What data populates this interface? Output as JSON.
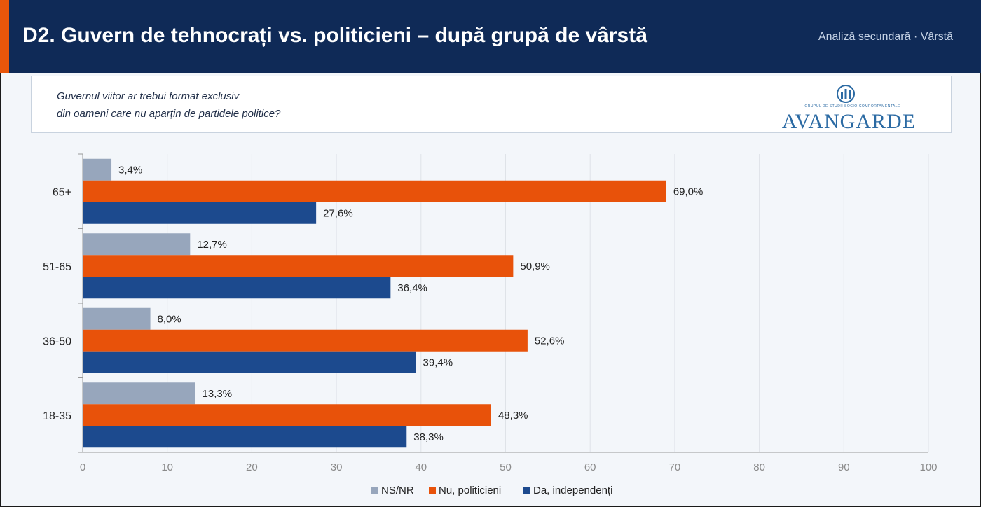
{
  "header": {
    "title": "D2. Guvern de tehnocrați vs. politicieni – după grupă de vârstă",
    "subtitle": "Analiză secundară · Vârstă"
  },
  "question": {
    "line1": "Guvernul viitor ar trebui format exclusiv",
    "line2": "din oameni care nu aparțin de partidele politice?"
  },
  "logo": {
    "brand": "AVANGARDE",
    "tagline": "GRUPUL DE STUDII SOCIO-COMPORTAMENTALE"
  },
  "chart_data": {
    "type": "bar",
    "orientation": "horizontal",
    "categories": [
      "65+",
      "51-65",
      "36-50",
      "18-35"
    ],
    "series": [
      {
        "name": "NS/NR",
        "color": "#97a6bc",
        "values": [
          3.4,
          12.7,
          8.0,
          13.3
        ],
        "labels": [
          "3,4%",
          "12,7%",
          "8,0%",
          "13,3%"
        ]
      },
      {
        "name": "Nu, politicieni",
        "color": "#e8520a",
        "values": [
          69.0,
          50.9,
          52.6,
          48.3
        ],
        "labels": [
          "69,0%",
          "50,9%",
          "52,6%",
          "48,3%"
        ]
      },
      {
        "name": "Da, independenți",
        "color": "#1c4a8e",
        "values": [
          27.6,
          36.4,
          39.4,
          38.3
        ],
        "labels": [
          "27,6%",
          "36,4%",
          "39,4%",
          "38,3%"
        ]
      }
    ],
    "xlim": [
      0,
      100
    ],
    "xticks": [
      0,
      10,
      20,
      30,
      40,
      50,
      60,
      70,
      80,
      90,
      100
    ],
    "grid": true,
    "legend_position": "bottom"
  }
}
